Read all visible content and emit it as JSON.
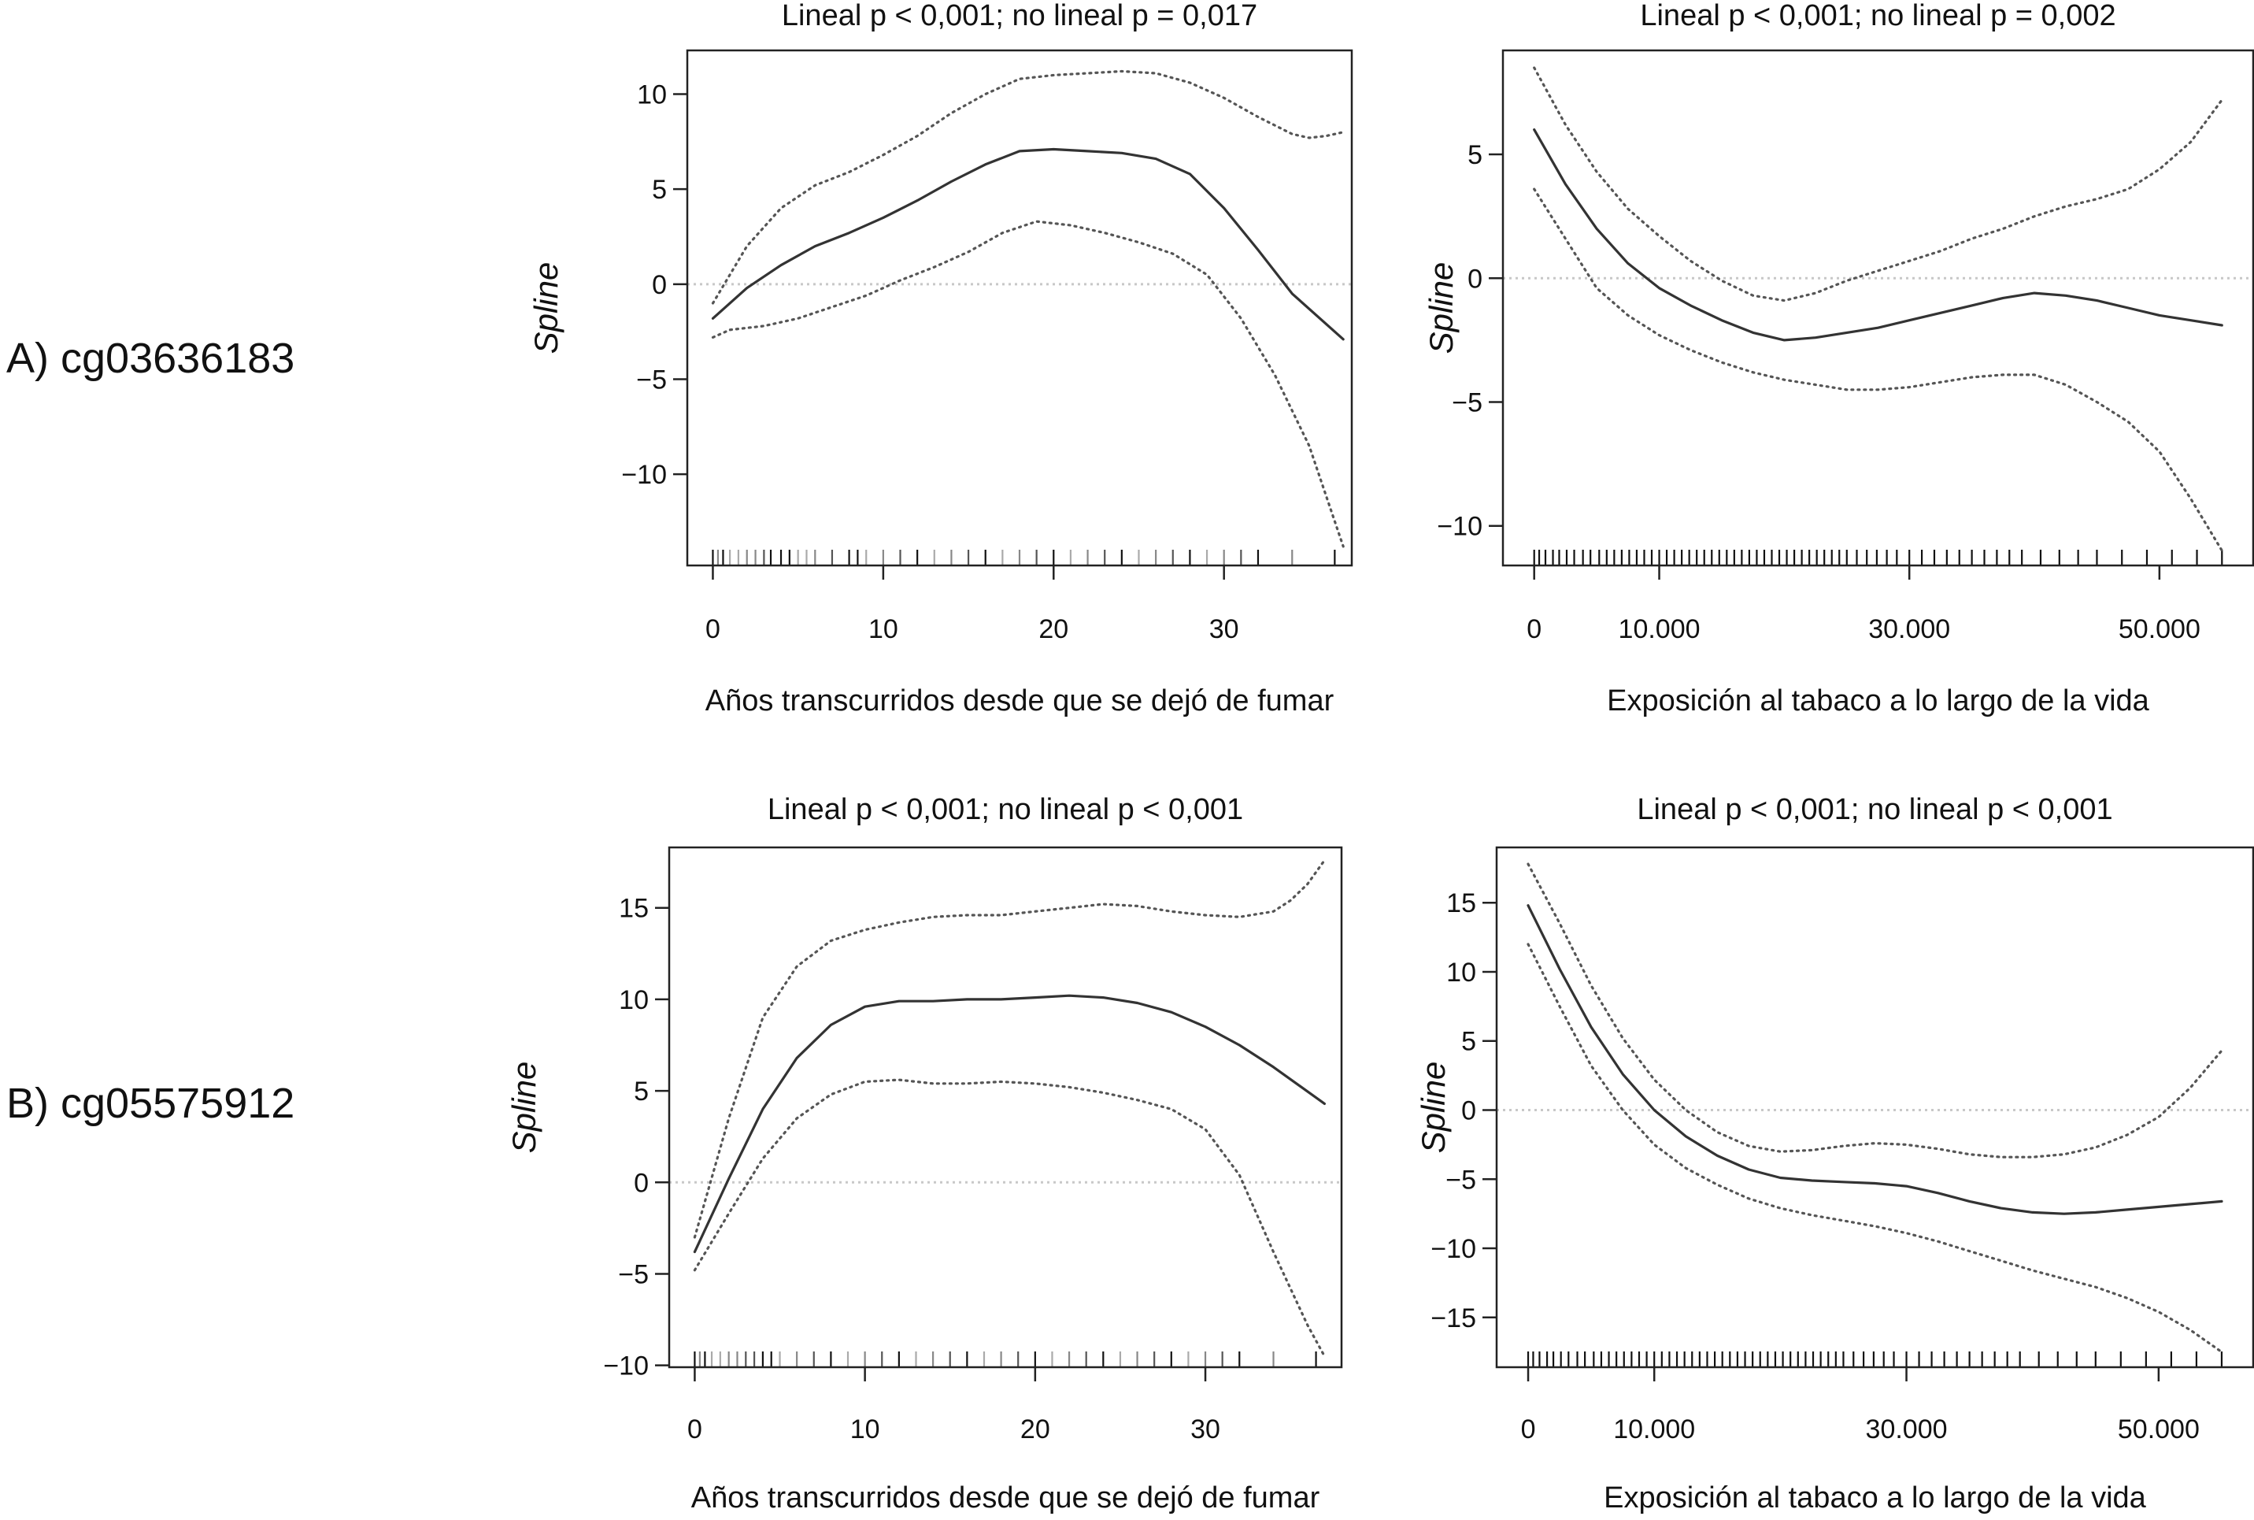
{
  "row_labels": [
    "A) cg03636183",
    "B) cg05575912"
  ],
  "chart_data": [
    {
      "type": "line",
      "title": "Lineal p < 0,001; no lineal p = 0,017",
      "xlabel": "Años transcurridos desde que se dejó de fumar",
      "ylabel": "Spline",
      "xlim": [
        -1.5,
        37.5
      ],
      "ylim": [
        -14.8,
        12.3
      ],
      "xticks": [
        0,
        10,
        20,
        30
      ],
      "xtick_labels": [
        "0",
        "10",
        "20",
        "30"
      ],
      "yticks": [
        10,
        5,
        0,
        -5,
        -10
      ],
      "ytick_labels": [
        "10",
        "5",
        "0",
        "−5",
        "−10"
      ],
      "reference_line_y": 0,
      "series": [
        {
          "style": "solid",
          "x": [
            0,
            2,
            4,
            6,
            8,
            10,
            12,
            14,
            16,
            18,
            20,
            22,
            24,
            26,
            28,
            30,
            32,
            34,
            37
          ],
          "y": [
            -1.8,
            -0.2,
            1.0,
            2.0,
            2.7,
            3.5,
            4.4,
            5.4,
            6.3,
            7.0,
            7.1,
            7.0,
            6.9,
            6.6,
            5.8,
            4.0,
            1.8,
            -0.5,
            -2.9
          ]
        },
        {
          "style": "dotted",
          "x": [
            0,
            2,
            4,
            6,
            8,
            10,
            12,
            14,
            16,
            18,
            20,
            22,
            24,
            26,
            28,
            30,
            32,
            34,
            35,
            36,
            37
          ],
          "y": [
            -1.0,
            2.0,
            4.0,
            5.2,
            5.9,
            6.8,
            7.8,
            9.0,
            10.0,
            10.8,
            11.0,
            11.1,
            11.2,
            11.1,
            10.6,
            9.8,
            8.8,
            7.9,
            7.7,
            7.8,
            8.0
          ]
        },
        {
          "style": "dotted",
          "x": [
            0,
            1,
            3,
            5,
            7,
            9,
            11,
            13,
            15,
            17,
            19,
            21,
            23,
            25,
            27,
            29,
            31,
            33,
            35,
            37
          ],
          "y": [
            -2.8,
            -2.4,
            -2.2,
            -1.8,
            -1.2,
            -0.6,
            0.2,
            0.9,
            1.7,
            2.7,
            3.3,
            3.1,
            2.7,
            2.2,
            1.6,
            0.5,
            -1.8,
            -4.8,
            -8.5,
            -13.8
          ]
        }
      ],
      "rug_x": [
        0,
        0.3,
        0.6,
        1,
        1.5,
        2,
        2.5,
        3,
        3.4,
        4,
        4.5,
        5,
        5.5,
        6,
        7,
        8,
        8.5,
        9,
        10,
        11,
        12,
        13,
        14,
        15,
        16,
        17,
        18,
        19,
        20,
        21,
        22,
        23,
        24,
        25,
        26,
        27,
        28,
        29,
        30,
        31,
        32,
        34,
        36.5
      ]
    },
    {
      "type": "line",
      "title": "Lineal p < 0,001; no lineal p = 0,002",
      "xlabel": "Exposición al tabaco a lo largo de la vida",
      "ylabel": "Spline",
      "xlim": [
        -2500,
        57500
      ],
      "ylim": [
        -11.6,
        9.2
      ],
      "xticks": [
        0,
        10000,
        30000,
        50000
      ],
      "xtick_labels": [
        "0",
        "10.000",
        "30.000",
        "50.000"
      ],
      "yticks": [
        5,
        0,
        -5,
        -10
      ],
      "ytick_labels": [
        "5",
        "0",
        "−5",
        "−10"
      ],
      "reference_line_y": 0,
      "series": [
        {
          "style": "solid",
          "x": [
            0,
            2500,
            5000,
            7500,
            10000,
            12500,
            15000,
            17500,
            20000,
            22500,
            25000,
            27500,
            30000,
            32500,
            35000,
            37500,
            40000,
            42500,
            45000,
            47500,
            50000,
            52500,
            55000
          ],
          "y": [
            6.0,
            3.8,
            2.0,
            0.6,
            -0.4,
            -1.1,
            -1.7,
            -2.2,
            -2.5,
            -2.4,
            -2.2,
            -2.0,
            -1.7,
            -1.4,
            -1.1,
            -0.8,
            -0.6,
            -0.7,
            -0.9,
            -1.2,
            -1.5,
            -1.7,
            -1.9
          ]
        },
        {
          "style": "dotted",
          "x": [
            0,
            2500,
            5000,
            7500,
            10000,
            12500,
            15000,
            17500,
            20000,
            22500,
            25000,
            27500,
            30000,
            32500,
            35000,
            37500,
            40000,
            42500,
            45000,
            47500,
            50000,
            52500,
            55000
          ],
          "y": [
            8.5,
            6.2,
            4.3,
            2.8,
            1.7,
            0.7,
            -0.1,
            -0.7,
            -0.9,
            -0.6,
            -0.1,
            0.3,
            0.7,
            1.1,
            1.6,
            2.0,
            2.5,
            2.9,
            3.2,
            3.6,
            4.4,
            5.5,
            7.2
          ]
        },
        {
          "style": "dotted",
          "x": [
            0,
            2500,
            5000,
            7500,
            10000,
            12500,
            15000,
            17500,
            20000,
            22500,
            25000,
            27500,
            30000,
            32500,
            35000,
            37500,
            40000,
            42500,
            45000,
            47500,
            50000,
            52500,
            55000
          ],
          "y": [
            3.6,
            1.6,
            -0.4,
            -1.5,
            -2.3,
            -2.9,
            -3.4,
            -3.8,
            -4.1,
            -4.3,
            -4.5,
            -4.5,
            -4.4,
            -4.2,
            -4.0,
            -3.9,
            -3.9,
            -4.3,
            -5.0,
            -5.8,
            -7.0,
            -8.9,
            -11.0
          ]
        }
      ],
      "rug_x": [
        0,
        400,
        900,
        1500,
        2000,
        2600,
        3200,
        3900,
        4500,
        5200,
        5800,
        6400,
        7000,
        7600,
        8200,
        8800,
        9400,
        10000,
        10600,
        11200,
        11800,
        12400,
        13000,
        13600,
        14200,
        14800,
        15400,
        16000,
        16600,
        17200,
        17800,
        18400,
        19000,
        19600,
        20200,
        20800,
        21400,
        22000,
        22600,
        23200,
        23800,
        24400,
        25000,
        25800,
        26600,
        27400,
        28200,
        29000,
        30000,
        31000,
        32000,
        33000,
        34000,
        35000,
        36000,
        37000,
        38000,
        39000,
        40500,
        42000,
        43500,
        45000,
        47000,
        49000,
        51000,
        53000,
        55000
      ]
    },
    {
      "type": "line",
      "title": "Lineal p < 0,001; no lineal p < 0,001",
      "xlabel": "Años transcurridos desde que se dejó de fumar",
      "ylabel": "Spline",
      "xlim": [
        -1.5,
        38
      ],
      "ylim": [
        -10.1,
        18.3
      ],
      "xticks": [
        0,
        10,
        20,
        30
      ],
      "xtick_labels": [
        "0",
        "10",
        "20",
        "30"
      ],
      "yticks": [
        15,
        10,
        5,
        0,
        -5,
        -10
      ],
      "ytick_labels": [
        "15",
        "10",
        "5",
        "0",
        "−5",
        "−10"
      ],
      "reference_line_y": 0,
      "series": [
        {
          "style": "solid",
          "x": [
            0,
            2,
            4,
            6,
            8,
            10,
            12,
            14,
            16,
            18,
            20,
            22,
            24,
            26,
            28,
            30,
            32,
            34,
            37
          ],
          "y": [
            -3.8,
            0.2,
            4.0,
            6.8,
            8.6,
            9.6,
            9.9,
            9.9,
            10.0,
            10.0,
            10.1,
            10.2,
            10.1,
            9.8,
            9.3,
            8.5,
            7.5,
            6.3,
            4.3
          ]
        },
        {
          "style": "dotted",
          "x": [
            0,
            2,
            4,
            6,
            8,
            10,
            12,
            14,
            16,
            18,
            20,
            22,
            24,
            26,
            28,
            30,
            32,
            34,
            35,
            36,
            37
          ],
          "y": [
            -3.0,
            3.5,
            9.0,
            11.8,
            13.2,
            13.8,
            14.2,
            14.5,
            14.6,
            14.6,
            14.8,
            15.0,
            15.2,
            15.1,
            14.8,
            14.6,
            14.5,
            14.8,
            15.4,
            16.3,
            17.6
          ]
        },
        {
          "style": "dotted",
          "x": [
            0,
            2,
            4,
            6,
            8,
            10,
            12,
            14,
            16,
            18,
            20,
            22,
            24,
            26,
            28,
            30,
            32,
            34,
            36,
            37
          ],
          "y": [
            -4.8,
            -1.7,
            1.3,
            3.5,
            4.8,
            5.5,
            5.6,
            5.4,
            5.4,
            5.5,
            5.4,
            5.2,
            4.9,
            4.5,
            4.0,
            2.9,
            0.4,
            -3.8,
            -7.8,
            -9.5
          ]
        }
      ],
      "rug_x": [
        0,
        0.3,
        0.6,
        1,
        1.5,
        2,
        2.5,
        3,
        3.5,
        4,
        4.5,
        5,
        6,
        7,
        8,
        9,
        10,
        11,
        12,
        13,
        14,
        15,
        16,
        17,
        18,
        19,
        20,
        21,
        22,
        23,
        24,
        25,
        26,
        27,
        28,
        29,
        30,
        31,
        32,
        34,
        36.5
      ]
    },
    {
      "type": "line",
      "title": "Lineal p < 0,001; no lineal p < 0,001",
      "xlabel": "Exposición al tabaco a lo largo de la vida",
      "ylabel": "Spline",
      "xlim": [
        -2500,
        57500
      ],
      "ylim": [
        -18.6,
        19.0
      ],
      "xticks": [
        0,
        10000,
        30000,
        50000
      ],
      "xtick_labels": [
        "0",
        "10.000",
        "30.000",
        "50.000"
      ],
      "yticks": [
        15,
        10,
        5,
        0,
        -5,
        -10,
        -15
      ],
      "ytick_labels": [
        "15",
        "10",
        "5",
        "0",
        "−5",
        "−10",
        "−15"
      ],
      "reference_line_y": 0,
      "series": [
        {
          "style": "solid",
          "x": [
            0,
            2500,
            5000,
            7500,
            10000,
            12500,
            15000,
            17500,
            20000,
            22500,
            25000,
            27500,
            30000,
            32500,
            35000,
            37500,
            40000,
            42500,
            45000,
            47500,
            50000,
            52500,
            55000
          ],
          "y": [
            14.8,
            10.2,
            6.0,
            2.6,
            0.0,
            -1.9,
            -3.3,
            -4.3,
            -4.9,
            -5.1,
            -5.2,
            -5.3,
            -5.5,
            -6.0,
            -6.6,
            -7.1,
            -7.4,
            -7.5,
            -7.4,
            -7.2,
            -7.0,
            -6.8,
            -6.6
          ]
        },
        {
          "style": "dotted",
          "x": [
            0,
            2500,
            5000,
            7500,
            10000,
            12500,
            15000,
            17500,
            20000,
            22500,
            25000,
            27500,
            30000,
            32500,
            35000,
            37500,
            40000,
            42500,
            45000,
            47500,
            50000,
            52500,
            55000
          ],
          "y": [
            17.8,
            13.5,
            9.0,
            5.2,
            2.2,
            0.0,
            -1.6,
            -2.6,
            -3.0,
            -2.9,
            -2.6,
            -2.4,
            -2.5,
            -2.8,
            -3.2,
            -3.4,
            -3.4,
            -3.2,
            -2.7,
            -1.8,
            -0.5,
            1.6,
            4.3
          ]
        },
        {
          "style": "dotted",
          "x": [
            0,
            2500,
            5000,
            7500,
            10000,
            12500,
            15000,
            17500,
            20000,
            22500,
            25000,
            27500,
            30000,
            32500,
            35000,
            37500,
            40000,
            42500,
            45000,
            47500,
            50000,
            52500,
            55000
          ],
          "y": [
            12.0,
            7.5,
            3.2,
            0.0,
            -2.5,
            -4.2,
            -5.4,
            -6.4,
            -7.1,
            -7.6,
            -8.0,
            -8.4,
            -8.9,
            -9.5,
            -10.2,
            -10.9,
            -11.6,
            -12.2,
            -12.8,
            -13.6,
            -14.6,
            -15.9,
            -17.5
          ]
        }
      ],
      "rug_x": [
        0,
        400,
        900,
        1500,
        2000,
        2600,
        3200,
        3900,
        4500,
        5200,
        5800,
        6400,
        7000,
        7600,
        8200,
        8800,
        9400,
        10000,
        10600,
        11200,
        11800,
        12400,
        13000,
        13600,
        14200,
        14800,
        15400,
        16000,
        16600,
        17200,
        17800,
        18400,
        19000,
        19600,
        20200,
        20800,
        21400,
        22000,
        22600,
        23200,
        23800,
        24400,
        25000,
        25800,
        26600,
        27400,
        28200,
        29000,
        30000,
        31000,
        32000,
        33000,
        34000,
        35000,
        36000,
        37000,
        38000,
        39000,
        40500,
        42000,
        43500,
        45000,
        47000,
        49000,
        51000,
        53000,
        55000
      ]
    }
  ]
}
